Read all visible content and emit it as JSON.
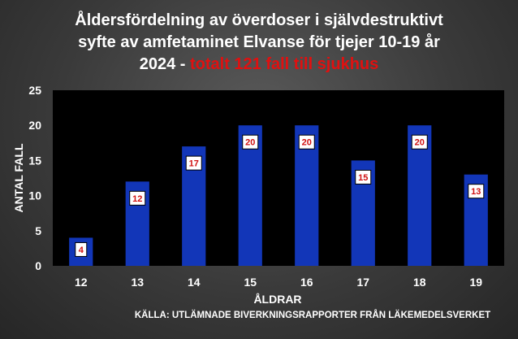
{
  "chart_data": {
    "type": "bar",
    "title_lines": [
      "Åldersfördelning av överdoser i självdestruktivt",
      "syfte av amfetaminet Elvanse för tjejer 10-19 år"
    ],
    "title_line3_white": "2024 - ",
    "title_line3_red": "totalt 121 fall till sjukhus",
    "categories": [
      "12",
      "13",
      "14",
      "15",
      "16",
      "17",
      "18",
      "19"
    ],
    "values": [
      4,
      12,
      17,
      20,
      20,
      15,
      20,
      13
    ],
    "data_labels": [
      "4",
      "12",
      "17",
      "20",
      "20",
      "15",
      "20",
      "13"
    ],
    "xlabel": "ÅLDRAR",
    "ylabel": "ANTAL FALL",
    "ylim": [
      0,
      25
    ],
    "yticks": [
      "0",
      "5",
      "10",
      "15",
      "20",
      "25"
    ],
    "source": "KÄLLA: UTLÄMNADE BIVERKNINGSRAPPORTER FRÅN LÄKEMEDELSVERKET",
    "grid": false,
    "legend": "none",
    "colors": {
      "bar": "#1236b8",
      "plot_background": "#000000",
      "title_highlight": "#e01010",
      "label_text": "#d01010"
    }
  }
}
